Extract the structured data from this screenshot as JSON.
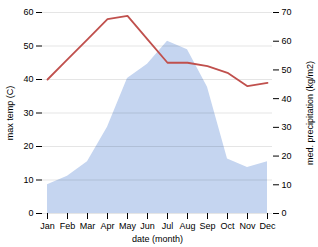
{
  "chart_data": {
    "type": "line",
    "xlabel": "date (month)",
    "ylabel": "max temp (C)",
    "y2label": "med. precipitation (kg/m2)",
    "categories": [
      "Jan",
      "Feb",
      "Mar",
      "Apr",
      "May",
      "Jun",
      "Jul",
      "Aug",
      "Sep",
      "Oct",
      "Nov",
      "Dec"
    ],
    "series": [
      {
        "type": "area",
        "axis": "y2",
        "color": "#c5d5f0",
        "values": [
          10,
          13,
          18,
          30,
          47,
          52,
          60,
          57,
          44,
          19,
          16,
          18
        ]
      },
      {
        "type": "line",
        "color": "#c0504d",
        "values": [
          40,
          46,
          52,
          58,
          59,
          52,
          45,
          45,
          44,
          42,
          38,
          39
        ]
      }
    ],
    "ylim": [
      0,
      60
    ],
    "yticks": [
      0,
      10,
      20,
      30,
      40,
      50,
      60
    ],
    "y2lim": [
      0,
      70
    ],
    "y2ticks": [
      0,
      10,
      20,
      30,
      40,
      50,
      60,
      70
    ],
    "grid": true
  }
}
